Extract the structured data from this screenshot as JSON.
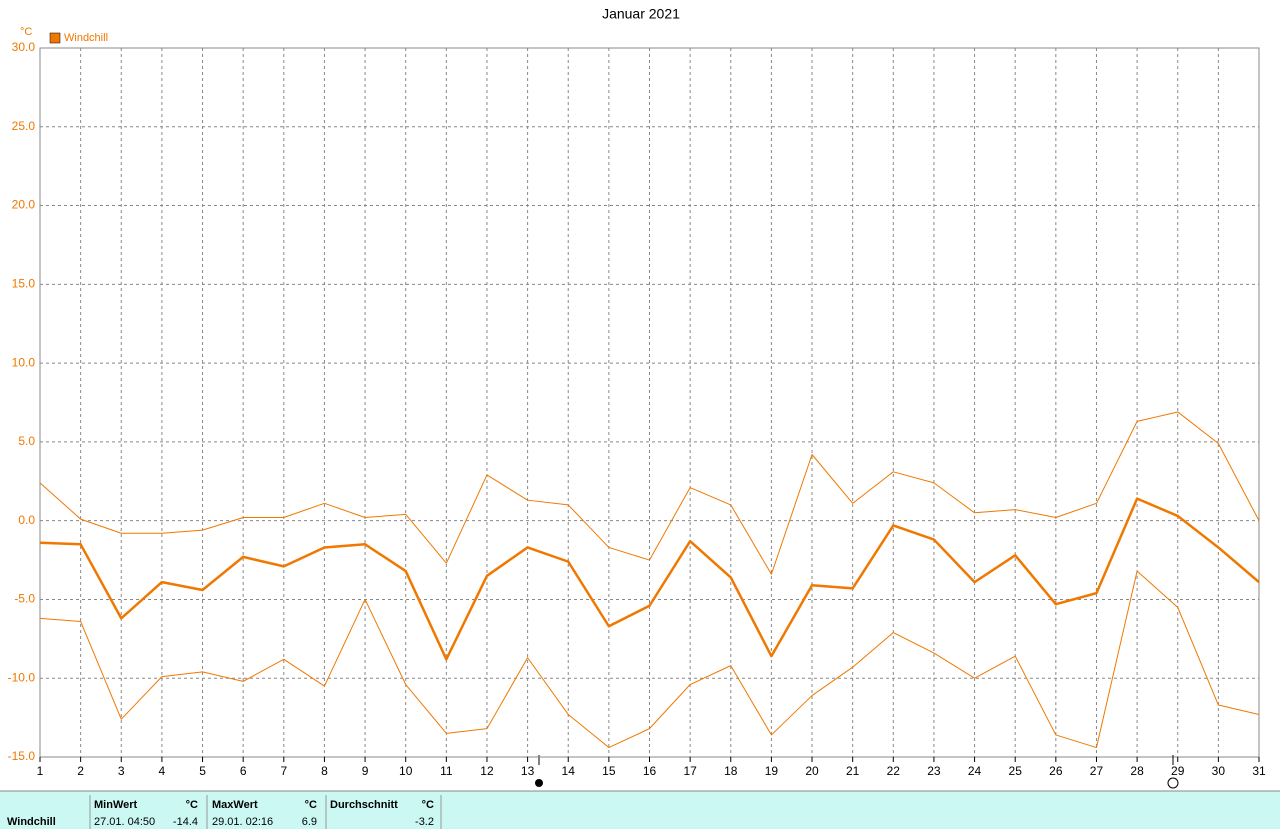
{
  "chart_data": {
    "type": "line",
    "title": "Januar 2021",
    "y_unit": "°C",
    "x": [
      1,
      2,
      3,
      4,
      5,
      6,
      7,
      8,
      9,
      10,
      11,
      12,
      13,
      14,
      15,
      16,
      17,
      18,
      19,
      20,
      21,
      22,
      23,
      24,
      25,
      26,
      27,
      28,
      29,
      30,
      31
    ],
    "xlim": [
      1,
      31
    ],
    "xticks": [
      1,
      2,
      3,
      4,
      5,
      6,
      7,
      8,
      9,
      10,
      11,
      12,
      13,
      14,
      15,
      16,
      17,
      18,
      19,
      20,
      21,
      22,
      23,
      24,
      25,
      26,
      27,
      28,
      29,
      30,
      31
    ],
    "ylim": [
      -15,
      30
    ],
    "yticks": [
      {
        "value": -15,
        "label": "-15.0"
      },
      {
        "value": -10,
        "label": "-10.0"
      },
      {
        "value": -5,
        "label": "-5.0"
      },
      {
        "value": 0,
        "label": "0.0"
      },
      {
        "value": 5,
        "label": "5.0"
      },
      {
        "value": 10,
        "label": "10.0"
      },
      {
        "value": 15,
        "label": "15.0"
      },
      {
        "value": 20,
        "label": "20.0"
      },
      {
        "value": 25,
        "label": "25.0"
      },
      {
        "value": 30,
        "label": "30.0"
      }
    ],
    "grid": true,
    "legend": "top-left",
    "series": [
      {
        "name": "Windchill",
        "color": "#f07800",
        "values": [
          -1.4,
          -1.5,
          -6.2,
          -3.9,
          -4.4,
          -2.3,
          -2.9,
          -1.7,
          -1.5,
          -3.2,
          -8.8,
          -3.5,
          -1.7,
          -2.6,
          -6.7,
          -5.4,
          -1.3,
          -3.6,
          -8.6,
          -4.1,
          -4.3,
          -0.3,
          -1.2,
          -3.9,
          -2.2,
          -5.3,
          -4.6,
          1.4,
          0.3,
          -1.7,
          -3.9
        ]
      },
      {
        "color": "#f07800",
        "values": [
          2.4,
          0.1,
          -0.8,
          -0.8,
          -0.6,
          0.2,
          0.2,
          1.1,
          0.2,
          0.4,
          -2.7,
          2.9,
          1.3,
          1.0,
          -1.7,
          -2.5,
          2.1,
          1.0,
          -3.4,
          4.2,
          1.1,
          3.1,
          2.4,
          0.5,
          0.7,
          0.2,
          1.1,
          6.3,
          6.9,
          4.9,
          0.0
        ]
      },
      {
        "color": "#f07800",
        "values": [
          -6.2,
          -6.4,
          -12.6,
          -9.9,
          -9.6,
          -10.2,
          -8.8,
          -10.5,
          -5.0,
          -10.4,
          -13.5,
          -13.2,
          -8.7,
          -12.3,
          -14.4,
          -13.2,
          -10.4,
          -9.2,
          -13.6,
          -11.1,
          -9.3,
          -7.1,
          -8.4,
          -10.0,
          -8.6,
          -13.6,
          -14.4,
          -3.2,
          -5.5,
          -11.7,
          -12.3
        ]
      }
    ]
  },
  "summary": {
    "label": "Windchill",
    "min": {
      "header": "MinWert",
      "unit": "°C",
      "time": "27.01.  04:50",
      "value": -14.4
    },
    "max": {
      "header": "MaxWert",
      "unit": "°C",
      "time": "29.01.  02:16",
      "value": 6.9
    },
    "avg": {
      "header": "Durchschnitt",
      "unit": "°C",
      "value": -3.2
    }
  }
}
